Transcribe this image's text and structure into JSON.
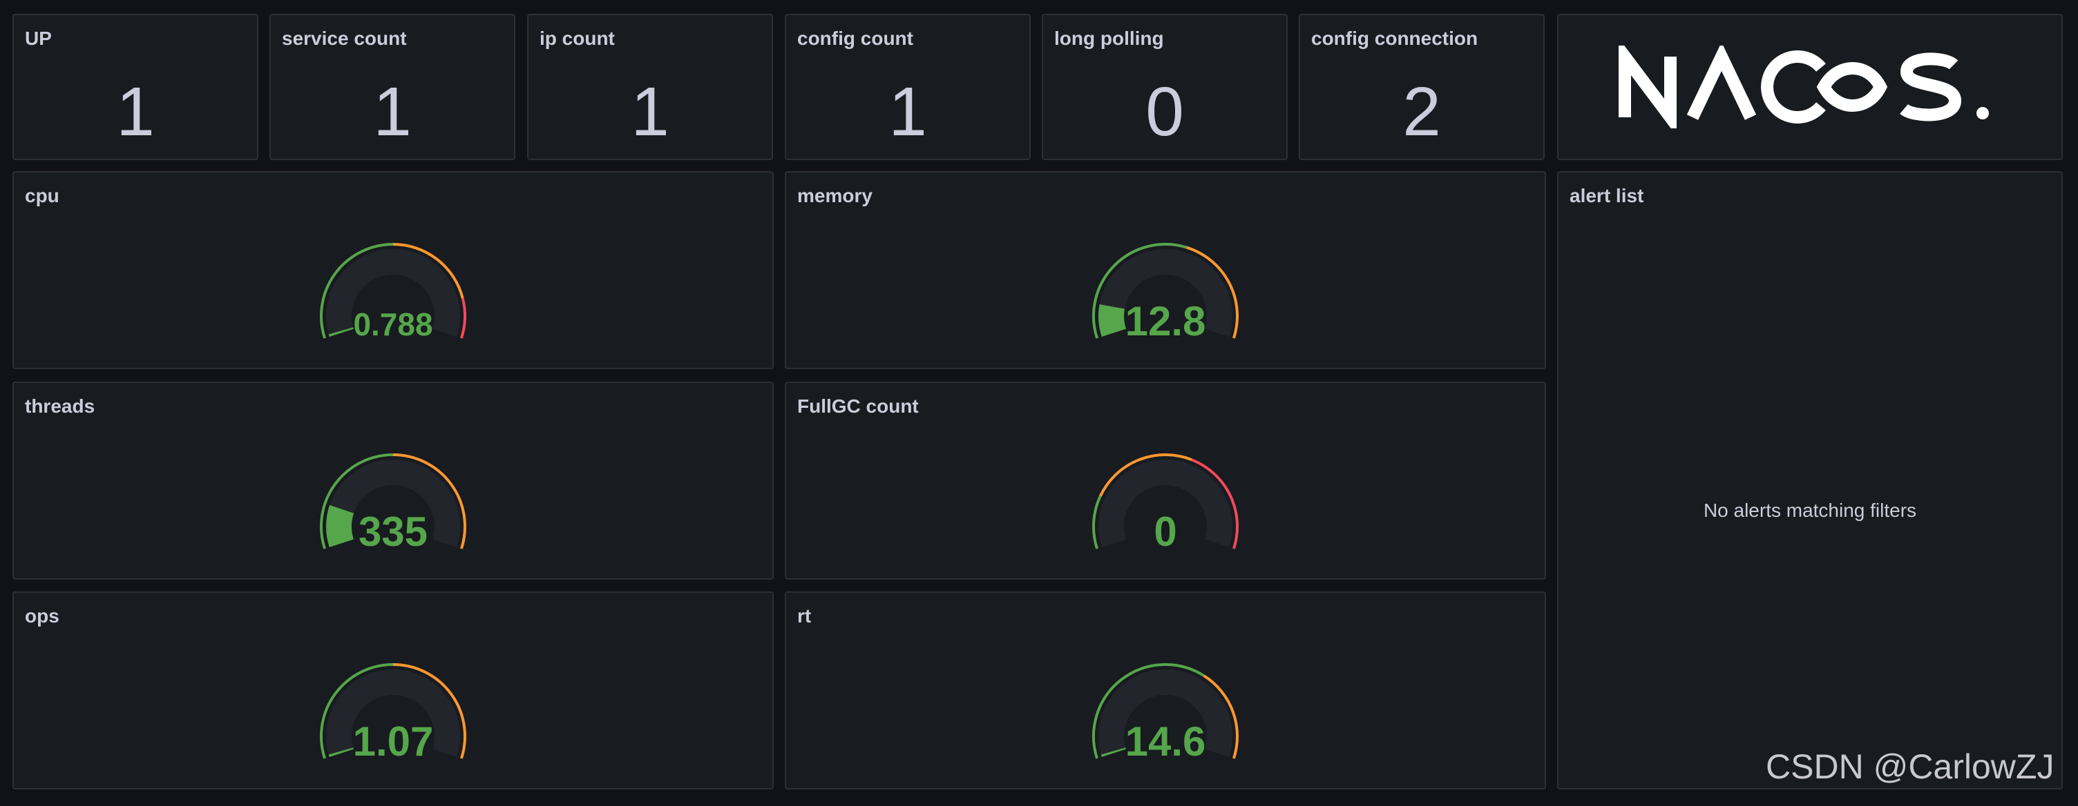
{
  "stats": [
    {
      "title": "UP",
      "value": "1"
    },
    {
      "title": "service count",
      "value": "1"
    },
    {
      "title": "ip count",
      "value": "1"
    },
    {
      "title": "config count",
      "value": "1"
    },
    {
      "title": "long polling",
      "value": "0"
    },
    {
      "title": "config connection",
      "value": "2"
    }
  ],
  "logo": {
    "text": "NACOS."
  },
  "gauges": [
    {
      "title": "cpu",
      "value": "0.788",
      "fill_fraction": 0.01,
      "value_color": "#56a64b",
      "threshold_colors": [
        "#56a64b",
        "#ff9830",
        "#f2495c"
      ],
      "threshold_splits": [
        0.5,
        0.85
      ]
    },
    {
      "title": "memory",
      "value": "12.8",
      "fill_fraction": 0.13,
      "value_color": "#56a64b",
      "threshold_colors": [
        "#56a64b",
        "#ff9830"
      ],
      "threshold_splits": [
        0.58
      ]
    },
    {
      "title": "threads",
      "value": "335",
      "fill_fraction": 0.17,
      "value_color": "#56a64b",
      "threshold_colors": [
        "#56a64b",
        "#ff9830"
      ],
      "threshold_splits": [
        0.5
      ]
    },
    {
      "title": "FullGC count",
      "value": "0",
      "fill_fraction": 0.0,
      "value_color": "#56a64b",
      "threshold_colors": [
        "#56a64b",
        "#ff9830",
        "#f2495c"
      ],
      "threshold_splits": [
        0.2,
        0.6
      ]
    },
    {
      "title": "ops",
      "value": "1.07",
      "fill_fraction": 0.01,
      "value_color": "#56a64b",
      "threshold_colors": [
        "#56a64b",
        "#ff9830"
      ],
      "threshold_splits": [
        0.5
      ]
    },
    {
      "title": "rt",
      "value": "14.6",
      "fill_fraction": 0.01,
      "value_color": "#56a64b",
      "threshold_colors": [
        "#56a64b",
        "#ff9830"
      ],
      "threshold_splits": [
        0.65
      ]
    }
  ],
  "alert_list": {
    "title": "alert list",
    "empty_message": "No alerts matching filters"
  },
  "watermark": "CSDN @CarlowZJ",
  "colors": {
    "background": "#111217",
    "panel": "#181b1f",
    "panel_border": "#2c2f35",
    "gauge_track": "#22252b"
  }
}
